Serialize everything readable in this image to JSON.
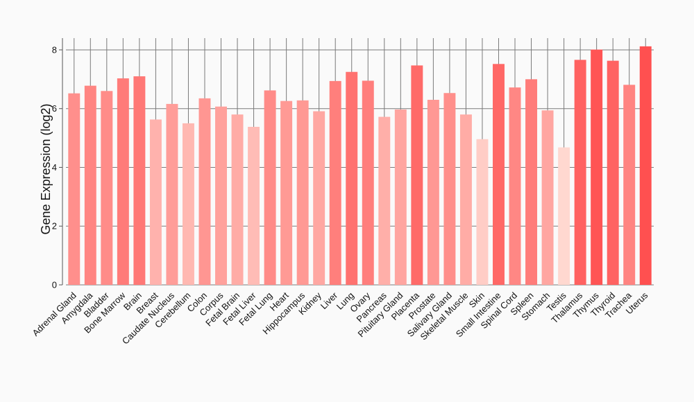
{
  "chart_data": {
    "type": "bar",
    "title": "",
    "xlabel": "",
    "ylabel": "Gene Expression (log2)",
    "ylim": [
      0,
      8.4
    ],
    "yticks": [
      0,
      2,
      4,
      6,
      8
    ],
    "grid": true,
    "categories": [
      "Adrenal Gland",
      "Amygdala",
      "Bladder",
      "Bone Marrow",
      "Brain",
      "Breast",
      "Caudate Nucleus",
      "Cerebellum",
      "Colon",
      "Corpus",
      "Fetal Brain",
      "Fetal Liver",
      "Fetal Lung",
      "Heart",
      "Hippocampus",
      "Kidney",
      "Liver",
      "Lung",
      "Ovary",
      "Pancreas",
      "Pituitary Gland",
      "Placenta",
      "Prostate",
      "Salivary Gland",
      "Skeletal Muscle",
      "Skin",
      "Small Intestine",
      "Spinal Cord",
      "Spleen",
      "Stomach",
      "Testis",
      "Thalamus",
      "Thymus",
      "Thyroid",
      "Trachea",
      "Uterus"
    ],
    "values": [
      6.52,
      6.78,
      6.6,
      7.03,
      7.1,
      5.63,
      6.16,
      5.5,
      6.35,
      6.07,
      5.8,
      5.38,
      6.62,
      6.26,
      6.28,
      5.91,
      6.94,
      7.25,
      6.95,
      5.72,
      5.97,
      7.47,
      6.3,
      6.53,
      5.8,
      4.96,
      7.52,
      6.72,
      7.0,
      5.94,
      4.68,
      7.66,
      8.01,
      7.63,
      6.81,
      8.12
    ],
    "color_scale": {
      "low": "#ffd8d0",
      "high": "#ff5050"
    }
  }
}
